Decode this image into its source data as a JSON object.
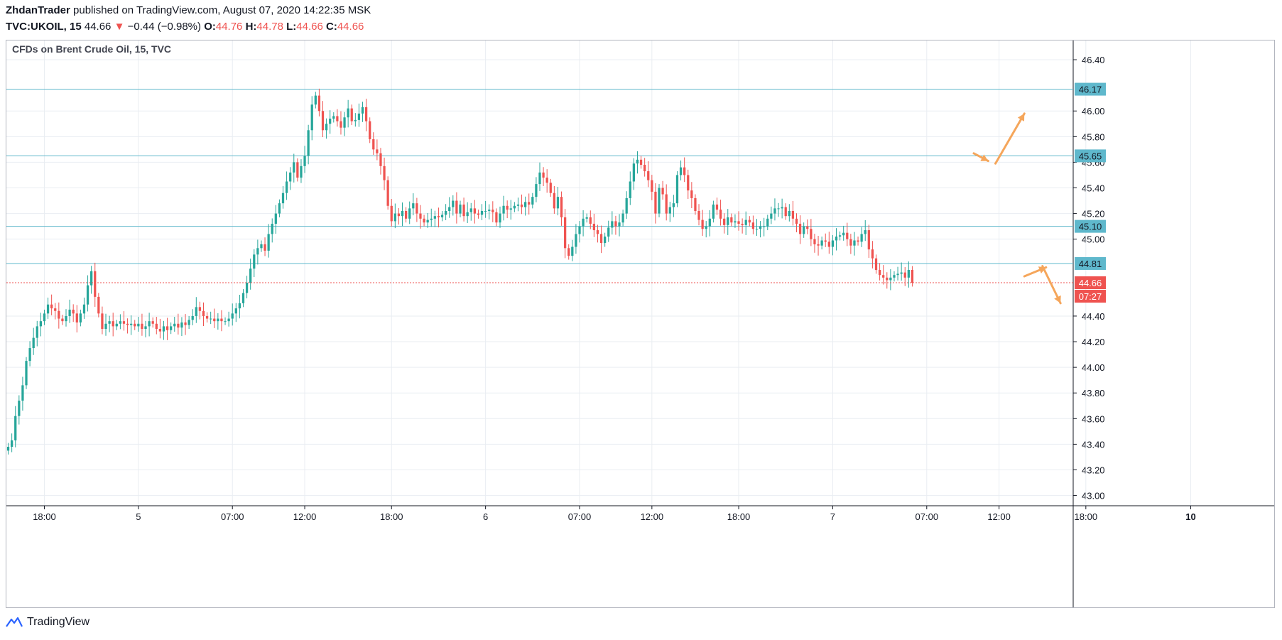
{
  "header": {
    "author": "ZhdanTrader",
    "published_text": "published on TradingView.com, August 07, 2020 14:22:35 MSK",
    "symbol": "TVC:UKOIL, 15",
    "last": "44.66",
    "change_arrow": "▼",
    "change": "−0.44 (−0.98%)",
    "o_label": "O:",
    "o_value": "44.76",
    "h_label": "H:",
    "h_value": "44.78",
    "l_label": "L:",
    "l_value": "44.66",
    "c_label": "C:",
    "c_value": "44.66"
  },
  "footer": {
    "brand": "TradingView"
  },
  "colors": {
    "up": "#26a69a",
    "down": "#ef5350",
    "level": "#5fb8cc",
    "arrow": "#f5a65b",
    "grid": "#e9edf2"
  },
  "chart_data": {
    "type": "candlestick",
    "title": "CFDs on Brent Crude Oil, 15, TVC",
    "timeframe": "15",
    "ylim": [
      42.92,
      46.55
    ],
    "y_ticks": [
      "46.40",
      "46.00",
      "45.80",
      "45.60",
      "45.40",
      "45.20",
      "45.00",
      "44.40",
      "44.20",
      "44.00",
      "43.80",
      "43.60",
      "43.40",
      "43.20",
      "43.00"
    ],
    "x_ticks": [
      {
        "label": "18:00",
        "bar": 10
      },
      {
        "label": "5",
        "bar": 36
      },
      {
        "label": "07:00",
        "bar": 62
      },
      {
        "label": "12:00",
        "bar": 82
      },
      {
        "label": "18:00",
        "bar": 106
      },
      {
        "label": "6",
        "bar": 132
      },
      {
        "label": "07:00",
        "bar": 158
      },
      {
        "label": "12:00",
        "bar": 178
      },
      {
        "label": "18:00",
        "bar": 202
      },
      {
        "label": "7",
        "bar": 228
      },
      {
        "label": "07:00",
        "bar": 254
      },
      {
        "label": "12:00",
        "bar": 274
      },
      {
        "label": "18:00",
        "bar": 298
      },
      {
        "label": "10",
        "bar": 327
      }
    ],
    "levels": [
      {
        "value": 46.17,
        "label": "46.17"
      },
      {
        "value": 45.65,
        "label": "45.65"
      },
      {
        "value": 45.1,
        "label": "45.10"
      },
      {
        "value": 44.81,
        "label": "44.81"
      }
    ],
    "last_price": {
      "value": 44.66,
      "label": "44.66",
      "countdown": "07:27"
    },
    "arrows": [
      {
        "from": [
          267,
          45.67
        ],
        "to": [
          271,
          45.61
        ]
      },
      {
        "from": [
          273,
          45.59
        ],
        "to": [
          281,
          45.98
        ]
      },
      {
        "from": [
          281,
          44.71
        ],
        "to": [
          287,
          44.78
        ]
      },
      {
        "from": [
          286,
          44.79
        ],
        "to": [
          291,
          44.5
        ]
      }
    ],
    "closes": [
      43.38,
      43.43,
      43.62,
      43.74,
      43.86,
      44.05,
      44.15,
      44.23,
      44.32,
      44.36,
      44.42,
      44.49,
      44.46,
      44.44,
      44.38,
      44.36,
      44.4,
      44.45,
      44.42,
      44.35,
      44.42,
      44.49,
      44.64,
      44.75,
      44.55,
      44.42,
      44.3,
      44.34,
      44.36,
      44.32,
      44.34,
      44.36,
      44.34,
      44.33,
      44.34,
      44.32,
      44.34,
      44.3,
      44.32,
      44.36,
      44.34,
      44.3,
      44.28,
      44.32,
      44.29,
      44.32,
      44.34,
      44.31,
      44.35,
      44.33,
      44.37,
      44.4,
      44.47,
      44.44,
      44.4,
      44.38,
      44.38,
      44.36,
      44.38,
      44.36,
      44.36,
      44.38,
      44.42,
      44.46,
      44.5,
      44.58,
      44.66,
      44.77,
      44.88,
      44.93,
      44.96,
      44.91,
      45.04,
      45.12,
      45.2,
      45.28,
      45.36,
      45.45,
      45.52,
      45.6,
      45.48,
      45.57,
      45.65,
      45.85,
      46.05,
      46.12,
      46.0,
      45.85,
      45.9,
      45.94,
      45.96,
      45.92,
      45.87,
      45.95,
      46.02,
      45.92,
      45.93,
      45.98,
      46.03,
      45.92,
      45.78,
      45.7,
      45.67,
      45.57,
      45.46,
      45.26,
      45.14,
      45.2,
      45.18,
      45.22,
      45.16,
      45.24,
      45.28,
      45.2,
      45.16,
      45.13,
      45.15,
      45.16,
      45.18,
      45.17,
      45.19,
      45.22,
      45.25,
      45.3,
      45.2,
      45.27,
      45.18,
      45.21,
      45.24,
      45.2,
      45.19,
      45.22,
      45.22,
      45.23,
      45.21,
      45.13,
      45.2,
      45.26,
      45.23,
      45.24,
      45.26,
      45.27,
      45.25,
      45.29,
      45.27,
      45.33,
      45.43,
      45.52,
      45.48,
      45.44,
      45.36,
      45.24,
      45.33,
      45.17,
      44.93,
      44.87,
      44.94,
      45.04,
      45.1,
      45.16,
      45.17,
      45.12,
      45.07,
      45.04,
      44.97,
      45.02,
      45.09,
      45.14,
      45.1,
      45.13,
      45.2,
      45.32,
      45.45,
      45.59,
      45.62,
      45.58,
      45.53,
      45.46,
      45.37,
      45.2,
      45.4,
      45.35,
      45.2,
      45.25,
      45.28,
      45.5,
      45.56,
      45.5,
      45.38,
      45.32,
      45.22,
      45.15,
      45.08,
      45.1,
      45.16,
      45.27,
      45.23,
      45.16,
      45.11,
      45.17,
      45.13,
      45.14,
      45.12,
      45.11,
      45.15,
      45.13,
      45.08,
      45.08,
      45.1,
      45.1,
      45.16,
      45.2,
      45.24,
      45.24,
      45.25,
      45.18,
      45.22,
      45.16,
      45.12,
      45.04,
      45.1,
      45.08,
      45.0,
      44.96,
      44.95,
      44.99,
      44.98,
      44.94,
      44.99,
      45.02,
      45.03,
      45.05,
      45.0,
      44.95,
      44.99,
      44.98,
      45.04,
      45.07,
      44.92,
      44.85,
      44.76,
      44.72,
      44.7,
      44.68,
      44.7,
      44.72,
      44.73,
      44.74,
      44.7,
      44.76,
      44.66
    ],
    "axis_pad_bars": 44
  }
}
